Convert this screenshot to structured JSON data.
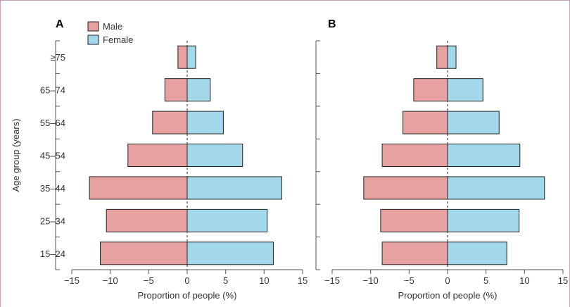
{
  "chart_data": [
    {
      "type": "bar",
      "panel_label": "A",
      "categories": [
        "15–24",
        "25–34",
        "35–44",
        "45–54",
        "55–64",
        "65–74",
        "≥75"
      ],
      "series": [
        {
          "name": "Male",
          "color": "#e8a1a1",
          "values": [
            -11.3,
            -10.5,
            -12.7,
            -7.7,
            -4.5,
            -2.9,
            -1.2
          ]
        },
        {
          "name": "Female",
          "color": "#a3d8eb",
          "values": [
            11.2,
            10.4,
            12.3,
            7.2,
            4.7,
            3.0,
            1.1
          ]
        }
      ],
      "xlabel": "Proportion of people (%)",
      "ylabel": "Age group (years)",
      "xlim": [
        -15,
        15
      ],
      "xticks": [
        -15,
        -10,
        -5,
        0,
        5,
        10,
        15
      ],
      "legend": "top-left",
      "grid": false
    },
    {
      "type": "bar",
      "panel_label": "B",
      "categories": [
        "15–24",
        "25–34",
        "35–44",
        "45–54",
        "55–64",
        "65–74",
        "≥75"
      ],
      "series": [
        {
          "name": "Male",
          "color": "#e8a1a1",
          "values": [
            -8.5,
            -8.7,
            -10.9,
            -8.5,
            -5.8,
            -4.4,
            -1.4
          ]
        },
        {
          "name": "Female",
          "color": "#a3d8eb",
          "values": [
            7.7,
            9.3,
            12.6,
            9.4,
            6.7,
            4.6,
            1.1
          ]
        }
      ],
      "xlabel": "Proportion of people (%)",
      "ylabel": "",
      "xlim": [
        -15,
        15
      ],
      "xticks": [
        -15,
        -10,
        -5,
        0,
        5,
        10,
        15
      ],
      "legend": "none",
      "grid": false
    }
  ]
}
